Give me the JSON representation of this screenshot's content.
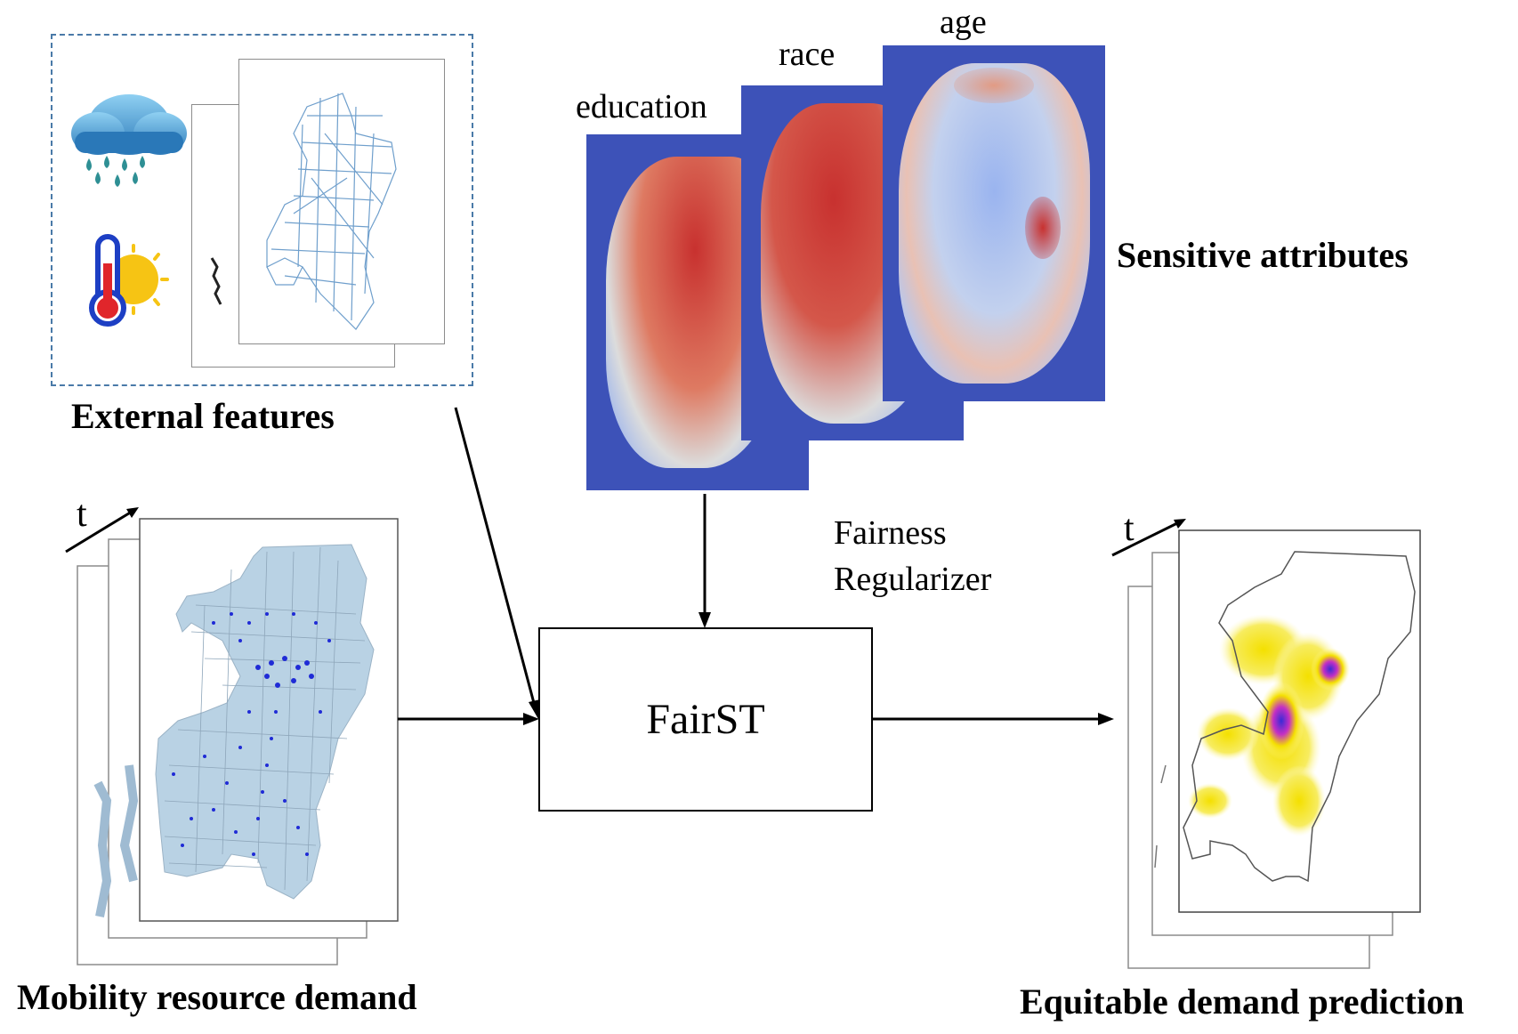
{
  "labels": {
    "external_features": "External features",
    "mobility_demand": "Mobility resource demand",
    "equitable_prediction": "Equitable demand prediction",
    "sensitive_attributes": "Sensitive attributes",
    "fairness_regularizer_line1": "Fairness",
    "fairness_regularizer_line2": "Regularizer",
    "model": "FairST",
    "time_axis_left": "t",
    "time_axis_right": "t"
  },
  "heatmaps": [
    {
      "title": "education",
      "colors": {
        "high": "#c8312f",
        "mid": "#dcdcdc",
        "low": "#3d52b8"
      }
    },
    {
      "title": "race",
      "colors": {
        "high": "#c8312f",
        "mid": "#dcdcdc",
        "low": "#3d52b8"
      }
    },
    {
      "title": "age",
      "colors": {
        "high": "#c8312f",
        "mid": "#dcdcdc",
        "low": "#3d52b8"
      }
    }
  ],
  "icons": [
    "rain-cloud-icon",
    "thermometer-sun-icon"
  ],
  "colors": {
    "map_fill": "#b9d2e4",
    "demand_points": "#1f2bd6",
    "prediction_hot": "#3a2bd6",
    "prediction_warm": "#f4e000",
    "external_border": "#4a7aa8"
  }
}
